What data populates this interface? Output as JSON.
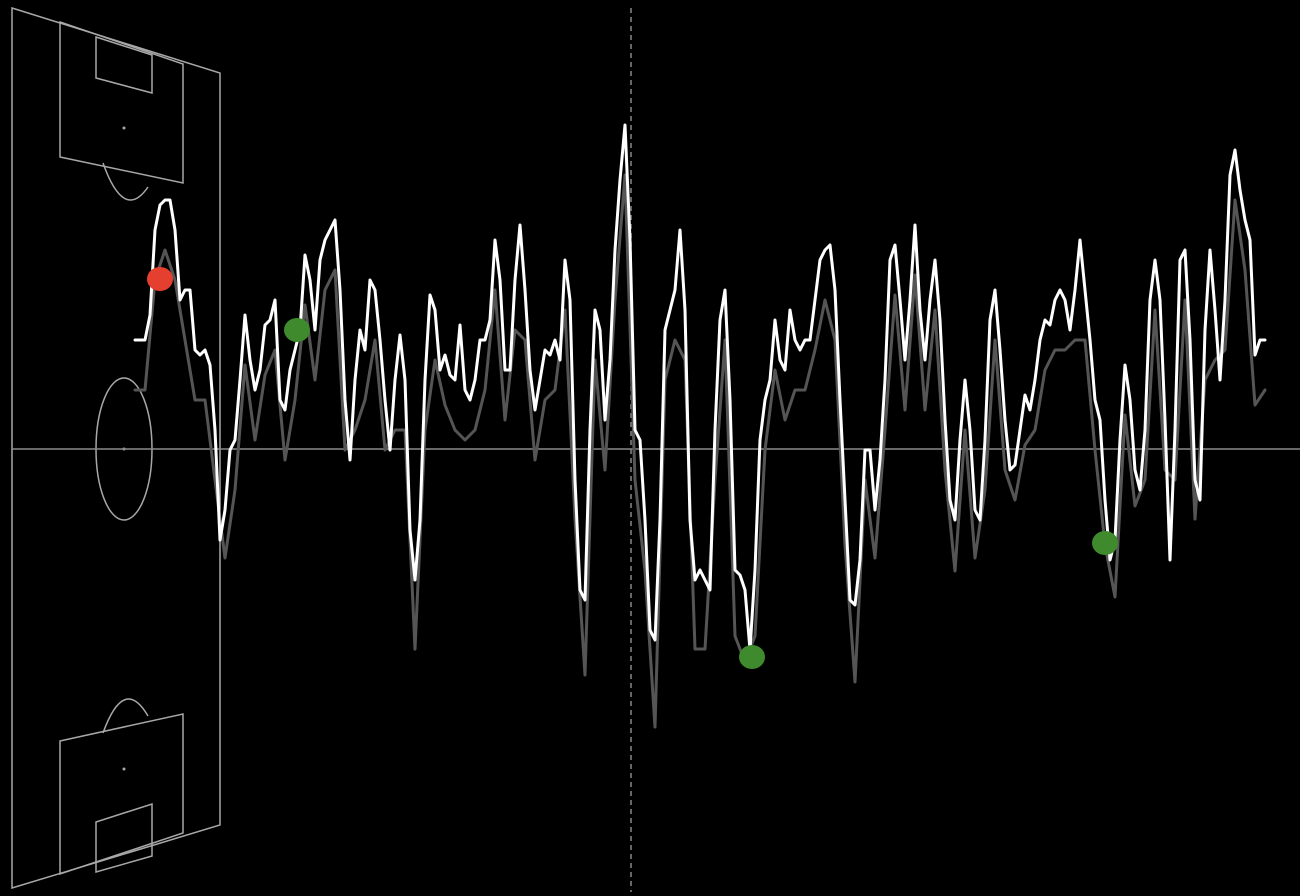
{
  "chart_data": {
    "type": "line",
    "xlim": [
      -135,
      1165
    ],
    "ylim": [
      -4.47,
      4.49
    ],
    "halftime_x": 496,
    "series": [
      {
        "color": "#555555",
        "x": [
          0,
          10,
          20,
          30,
          40,
          50,
          60,
          70,
          80,
          90,
          100,
          110,
          120,
          130,
          140,
          150,
          160,
          170,
          180,
          190,
          200,
          210,
          220,
          230,
          240,
          250,
          260,
          270,
          280,
          290,
          300,
          310,
          320,
          330,
          340,
          350,
          360,
          370,
          380,
          390,
          400,
          410,
          420,
          430,
          440,
          450,
          460,
          470,
          480,
          490,
          500,
          510,
          520,
          530,
          540,
          550,
          560,
          570,
          580,
          590,
          600,
          610,
          620,
          630,
          640,
          650,
          660,
          670,
          680,
          690,
          700,
          710,
          720,
          730,
          740,
          750,
          760,
          770,
          780,
          790,
          800,
          810,
          820,
          830,
          840,
          850,
          860,
          870,
          880,
          890,
          900,
          910,
          920,
          930,
          940,
          950,
          960,
          970,
          980,
          990,
          1000,
          1010,
          1020,
          1030,
          1040,
          1050,
          1060,
          1070,
          1080,
          1090,
          1100,
          1110,
          1120,
          1130
        ],
        "values": [
          0.59,
          0.59,
          1.69,
          1.99,
          1.69,
          1.09,
          0.49,
          0.49,
          -0.31,
          -1.09,
          -0.41,
          0.84,
          0.09,
          0.74,
          0.99,
          -0.11,
          0.49,
          1.44,
          0.69,
          1.59,
          1.79,
          -0.01,
          0.19,
          0.49,
          1.09,
          -0.01,
          0.19,
          0.19,
          -2.0,
          0.19,
          0.89,
          0.44,
          0.19,
          0.09,
          0.19,
          0.59,
          1.59,
          0.29,
          1.19,
          1.09,
          -0.11,
          0.49,
          0.59,
          1.39,
          -0.7,
          -2.26,
          0.89,
          -0.21,
          1.49,
          2.74,
          -0.31,
          -1.22,
          -2.78,
          0.69,
          1.09,
          0.89,
          -2.0,
          -2.0,
          -0.31,
          1.09,
          -1.87,
          -2.13,
          -1.87,
          -0.01,
          0.79,
          0.29,
          0.59,
          0.59,
          0.99,
          1.49,
          1.09,
          -0.96,
          -2.33,
          -0.31,
          -1.09,
          0.19,
          1.54,
          0.39,
          1.74,
          0.39,
          1.39,
          -0.21,
          -1.22,
          0.19,
          -1.09,
          -0.41,
          1.09,
          -0.21,
          -0.51,
          0.04,
          0.19,
          0.79,
          0.99,
          0.99,
          1.09,
          1.09,
          -0.01,
          -0.96,
          -1.48,
          0.34,
          -0.57,
          -0.31,
          1.39,
          -0.21,
          -0.31,
          1.49,
          -0.7,
          0.69,
          0.89,
          0.99,
          2.49,
          1.79,
          0.44,
          0.59
        ]
      },
      {
        "color": "#ffffff",
        "x": [
          0,
          10,
          15,
          20,
          25,
          30,
          35,
          40,
          45,
          50,
          55,
          60,
          65,
          70,
          75,
          80,
          85,
          90,
          95,
          100,
          105,
          110,
          115,
          120,
          125,
          130,
          135,
          140,
          145,
          150,
          155,
          160,
          165,
          170,
          175,
          180,
          185,
          190,
          195,
          200,
          205,
          210,
          215,
          220,
          225,
          230,
          235,
          240,
          245,
          250,
          255,
          260,
          265,
          270,
          275,
          280,
          285,
          290,
          295,
          300,
          305,
          310,
          315,
          320,
          325,
          330,
          335,
          340,
          345,
          350,
          355,
          360,
          365,
          370,
          375,
          380,
          385,
          390,
          395,
          400,
          405,
          410,
          415,
          420,
          425,
          430,
          435,
          440,
          445,
          450,
          455,
          460,
          465,
          470,
          475,
          480,
          485,
          490,
          495,
          500,
          505,
          510,
          515,
          520,
          525,
          530,
          535,
          540,
          545,
          550,
          555,
          560,
          565,
          570,
          575,
          580,
          585,
          590,
          595,
          600,
          605,
          610,
          615,
          620,
          625,
          630,
          635,
          640,
          645,
          650,
          655,
          660,
          665,
          670,
          675,
          680,
          685,
          690,
          695,
          700,
          705,
          710,
          715,
          720,
          725,
          730,
          735,
          740,
          745,
          750,
          755,
          760,
          765,
          770,
          775,
          780,
          785,
          790,
          795,
          800,
          805,
          810,
          815,
          820,
          825,
          830,
          835,
          840,
          845,
          850,
          855,
          860,
          865,
          870,
          875,
          880,
          885,
          890,
          895,
          900,
          905,
          910,
          915,
          920,
          925,
          930,
          935,
          940,
          945,
          950,
          955,
          960,
          965,
          970,
          975,
          980,
          985,
          990,
          995,
          1000,
          1005,
          1010,
          1015,
          1020,
          1025,
          1030,
          1035,
          1040,
          1045,
          1050,
          1055,
          1060,
          1065,
          1070,
          1075,
          1080,
          1085,
          1090,
          1095,
          1100,
          1105,
          1110,
          1115,
          1120,
          1125,
          1130
        ],
        "values": [
          1.09,
          1.09,
          1.34,
          2.19,
          2.44,
          2.49,
          2.49,
          2.19,
          1.49,
          1.59,
          1.59,
          0.99,
          0.94,
          0.99,
          0.84,
          0.19,
          -0.91,
          -0.61,
          -0.01,
          0.09,
          0.69,
          1.34,
          0.89,
          0.59,
          0.79,
          1.24,
          1.29,
          1.49,
          0.49,
          0.39,
          0.79,
          0.99,
          1.19,
          1.94,
          1.69,
          1.19,
          1.89,
          2.09,
          2.19,
          2.29,
          1.59,
          0.49,
          -0.11,
          0.69,
          1.19,
          0.99,
          1.69,
          1.59,
          1.09,
          0.49,
          -0.01,
          0.69,
          1.14,
          0.69,
          -0.81,
          -1.31,
          -0.71,
          0.69,
          1.54,
          1.39,
          0.79,
          0.94,
          0.74,
          0.69,
          1.24,
          0.59,
          0.49,
          0.69,
          1.09,
          1.09,
          1.29,
          2.09,
          1.69,
          0.79,
          0.79,
          1.69,
          2.24,
          1.59,
          0.79,
          0.39,
          0.69,
          0.99,
          0.94,
          1.09,
          0.89,
          1.89,
          1.49,
          -0.31,
          -1.41,
          -1.51,
          0.19,
          1.39,
          1.19,
          0.29,
          0.89,
          1.99,
          2.69,
          3.24,
          2.09,
          0.19,
          0.09,
          -0.71,
          -1.81,
          -1.91,
          -0.71,
          1.19,
          1.39,
          1.59,
          2.19,
          1.39,
          -0.71,
          -1.31,
          -1.21,
          -1.31,
          -1.41,
          0.19,
          1.29,
          1.59,
          0.49,
          -1.21,
          -1.26,
          -1.41,
          -2.01,
          -1.21,
          0.09,
          0.49,
          0.69,
          1.29,
          0.89,
          0.79,
          1.39,
          1.09,
          0.99,
          1.09,
          1.09,
          1.49,
          1.89,
          1.99,
          2.04,
          1.59,
          0.49,
          -0.51,
          -1.51,
          -1.56,
          -1.11,
          -0.01,
          -0.01,
          -0.61,
          -0.11,
          0.69,
          1.89,
          2.04,
          1.49,
          0.89,
          1.49,
          2.24,
          1.39,
          0.89,
          1.49,
          1.89,
          1.29,
          0.29,
          -0.51,
          -0.71,
          0.09,
          0.69,
          0.19,
          -0.61,
          -0.71,
          0.09,
          1.29,
          1.59,
          0.99,
          0.29,
          -0.21,
          -0.16,
          0.19,
          0.54,
          0.39,
          0.69,
          1.09,
          1.29,
          1.24,
          1.49,
          1.59,
          1.49,
          1.19,
          1.59,
          2.09,
          1.59,
          1.09,
          0.49,
          0.29,
          -0.51,
          -1.11,
          -0.91,
          0.09,
          0.84,
          0.49,
          -0.21,
          -0.41,
          0.19,
          1.49,
          1.89,
          1.49,
          0.29,
          -1.11,
          0.19,
          1.89,
          1.99,
          1.09,
          -0.31,
          -0.51,
          1.19,
          1.99,
          1.39,
          0.69,
          1.49,
          2.74,
          2.99,
          2.59,
          2.29,
          2.09,
          0.94,
          1.09,
          1.09
        ]
      }
    ],
    "events": {
      "x": [
        25,
        162,
        617,
        970
      ],
      "values": [
        1.7,
        1.19,
        -2.08,
        -0.94
      ],
      "colors": [
        "#e5402f",
        "#3e8a2d",
        "#3e8a2d",
        "#3e8a2d"
      ]
    }
  }
}
